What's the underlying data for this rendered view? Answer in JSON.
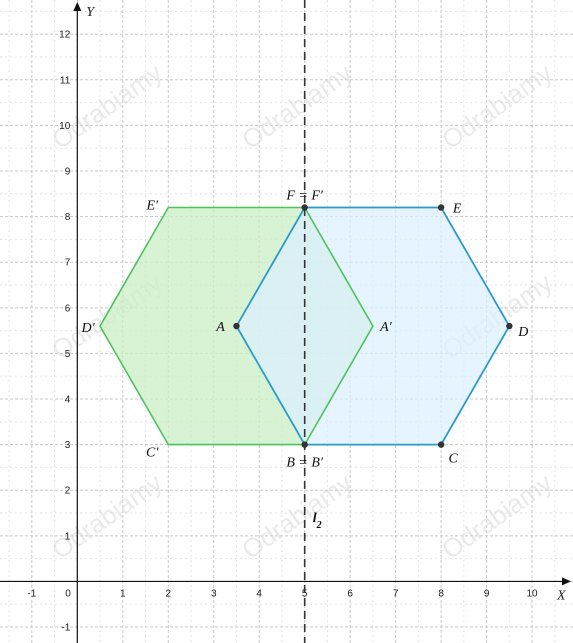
{
  "axes": {
    "x_name": "X",
    "y_name": "Y",
    "origin_label": "0",
    "x_ticks": [
      "-1",
      "1",
      "2",
      "3",
      "4",
      "5",
      "6",
      "7",
      "8",
      "9",
      "10"
    ],
    "y_ticks": [
      "-1",
      "1",
      "2",
      "3",
      "4",
      "5",
      "6",
      "7",
      "8",
      "9",
      "10",
      "11",
      "12"
    ],
    "xlim": [
      -1.7,
      10.9
    ],
    "ylim": [
      -1.35,
      12.75
    ]
  },
  "line": {
    "label": "l",
    "subscript": "2",
    "x": 5
  },
  "hexagons": {
    "blue": {
      "color": "#2a9bc8",
      "fill": "#dcefff",
      "vertices": [
        [
          5,
          3
        ],
        [
          8,
          3
        ],
        [
          9.5,
          5.6
        ],
        [
          8,
          8.2
        ],
        [
          5,
          8.2
        ],
        [
          3.5,
          5.6
        ]
      ]
    },
    "green": {
      "color": "#4cc35b",
      "fill": "#cbeec6",
      "vertices": [
        [
          5,
          3
        ],
        [
          2,
          3
        ],
        [
          0.5,
          5.6
        ],
        [
          2,
          8.2
        ],
        [
          5,
          8.2
        ],
        [
          6.5,
          5.6
        ]
      ]
    }
  },
  "points": [
    {
      "name": "B = B′",
      "x": 5,
      "y": 3,
      "dot": true
    },
    {
      "name": "C",
      "x": 8,
      "y": 3,
      "dot": true
    },
    {
      "name": "D",
      "x": 9.5,
      "y": 5.6,
      "dot": true
    },
    {
      "name": "E",
      "x": 8,
      "y": 8.2,
      "dot": true
    },
    {
      "name": "F = F′",
      "x": 5,
      "y": 8.2,
      "dot": true
    },
    {
      "name": "A",
      "x": 3.5,
      "y": 5.6,
      "dot": true
    },
    {
      "name": "C′",
      "x": 2,
      "y": 3,
      "dot": false
    },
    {
      "name": "D′",
      "x": 0.5,
      "y": 5.6,
      "dot": false
    },
    {
      "name": "E′",
      "x": 2,
      "y": 8.2,
      "dot": false
    },
    {
      "name": "A′",
      "x": 6.5,
      "y": 5.6,
      "dot": false
    }
  ],
  "watermark": "Odrabiamy"
}
